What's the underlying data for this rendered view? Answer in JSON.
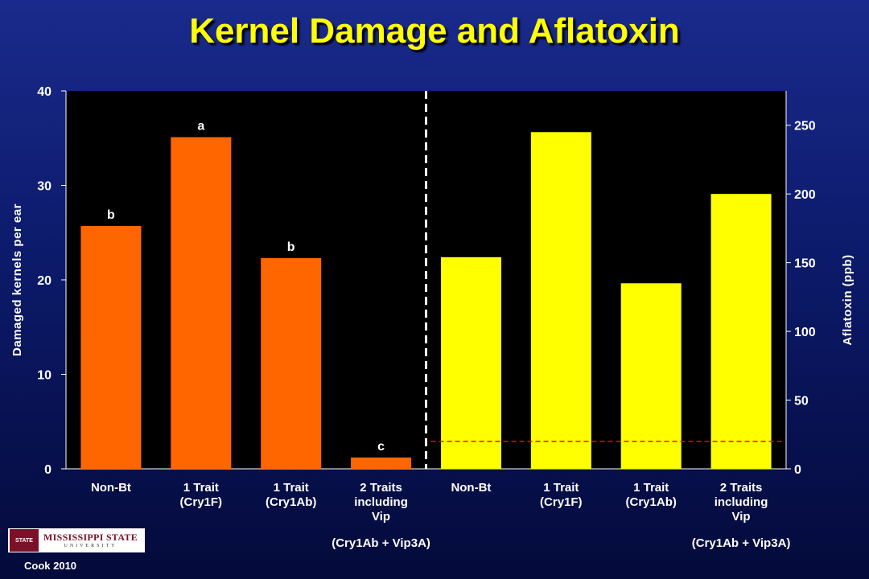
{
  "title": "Kernel Damage and Aflatoxin",
  "chart_data": {
    "type": "bar",
    "left_axis": {
      "label": "Damaged kernels per ear",
      "ylim": [
        0,
        40
      ],
      "ticks": [
        0,
        10,
        20,
        30,
        40
      ]
    },
    "right_axis": {
      "label": "Aflatoxin  (ppb)",
      "ylim": [
        0,
        275
      ],
      "ticks": [
        0,
        50,
        100,
        150,
        200,
        250
      ]
    },
    "series": [
      {
        "axis": "left",
        "color": "#ff6600",
        "categories": [
          [
            "Non-Bt"
          ],
          [
            "1 Trait",
            "(Cry1F)"
          ],
          [
            "1 Trait",
            "(Cry1Ab)"
          ],
          [
            "2 Traits",
            "including",
            "Vip"
          ]
        ],
        "values": [
          25.7,
          35.1,
          22.3,
          1.2
        ],
        "letters": [
          "b",
          "a",
          "b",
          "c"
        ],
        "group_note": "(Cry1Ab + Vip3A)"
      },
      {
        "axis": "right",
        "color": "#ffff00",
        "categories": [
          [
            "Non-Bt"
          ],
          [
            "1 Trait",
            "(Cry1F)"
          ],
          [
            "1 Trait",
            "(Cry1Ab)"
          ],
          [
            "2 Traits",
            "including",
            "Vip"
          ]
        ],
        "values": [
          154,
          245,
          135,
          200
        ],
        "group_note": "(Cry1Ab + Vip3A)"
      }
    ],
    "reference_line": {
      "axis": "right",
      "value": 20,
      "color": "#ff0000",
      "style": "dashed"
    },
    "divider_style": "dashed-white"
  },
  "logo": {
    "seal": "STATE",
    "line1": "MISSISSIPPI STATE",
    "line2": "UNIVERSITY"
  },
  "credit": "Cook 2010"
}
